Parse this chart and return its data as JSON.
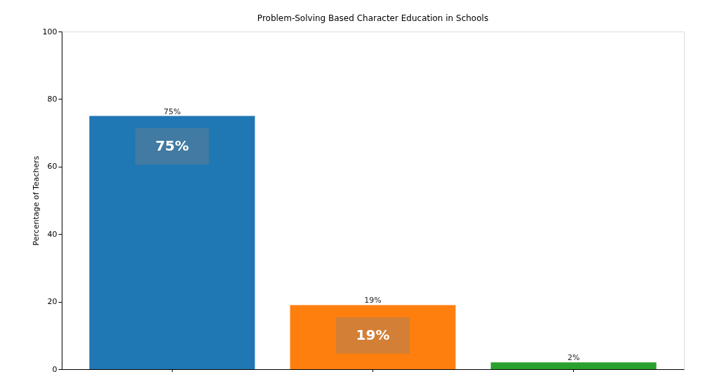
{
  "chart_data": {
    "type": "bar",
    "title": "Problem-Solving Based Character Education in Schools",
    "ylabel": "Percentage of Teachers",
    "categories": [
      null,
      null,
      null
    ],
    "values": [
      75,
      19,
      2
    ],
    "colors": [
      "#1f77b4",
      "#ff7f0e",
      "#2ca02c"
    ],
    "value_labels": [
      "75%",
      "19%",
      "2%"
    ],
    "ylim": [
      0,
      100
    ],
    "yticks": [
      0,
      20,
      40,
      60,
      80,
      100
    ],
    "grid": false,
    "annotations": [
      "75%",
      "19%"
    ]
  }
}
